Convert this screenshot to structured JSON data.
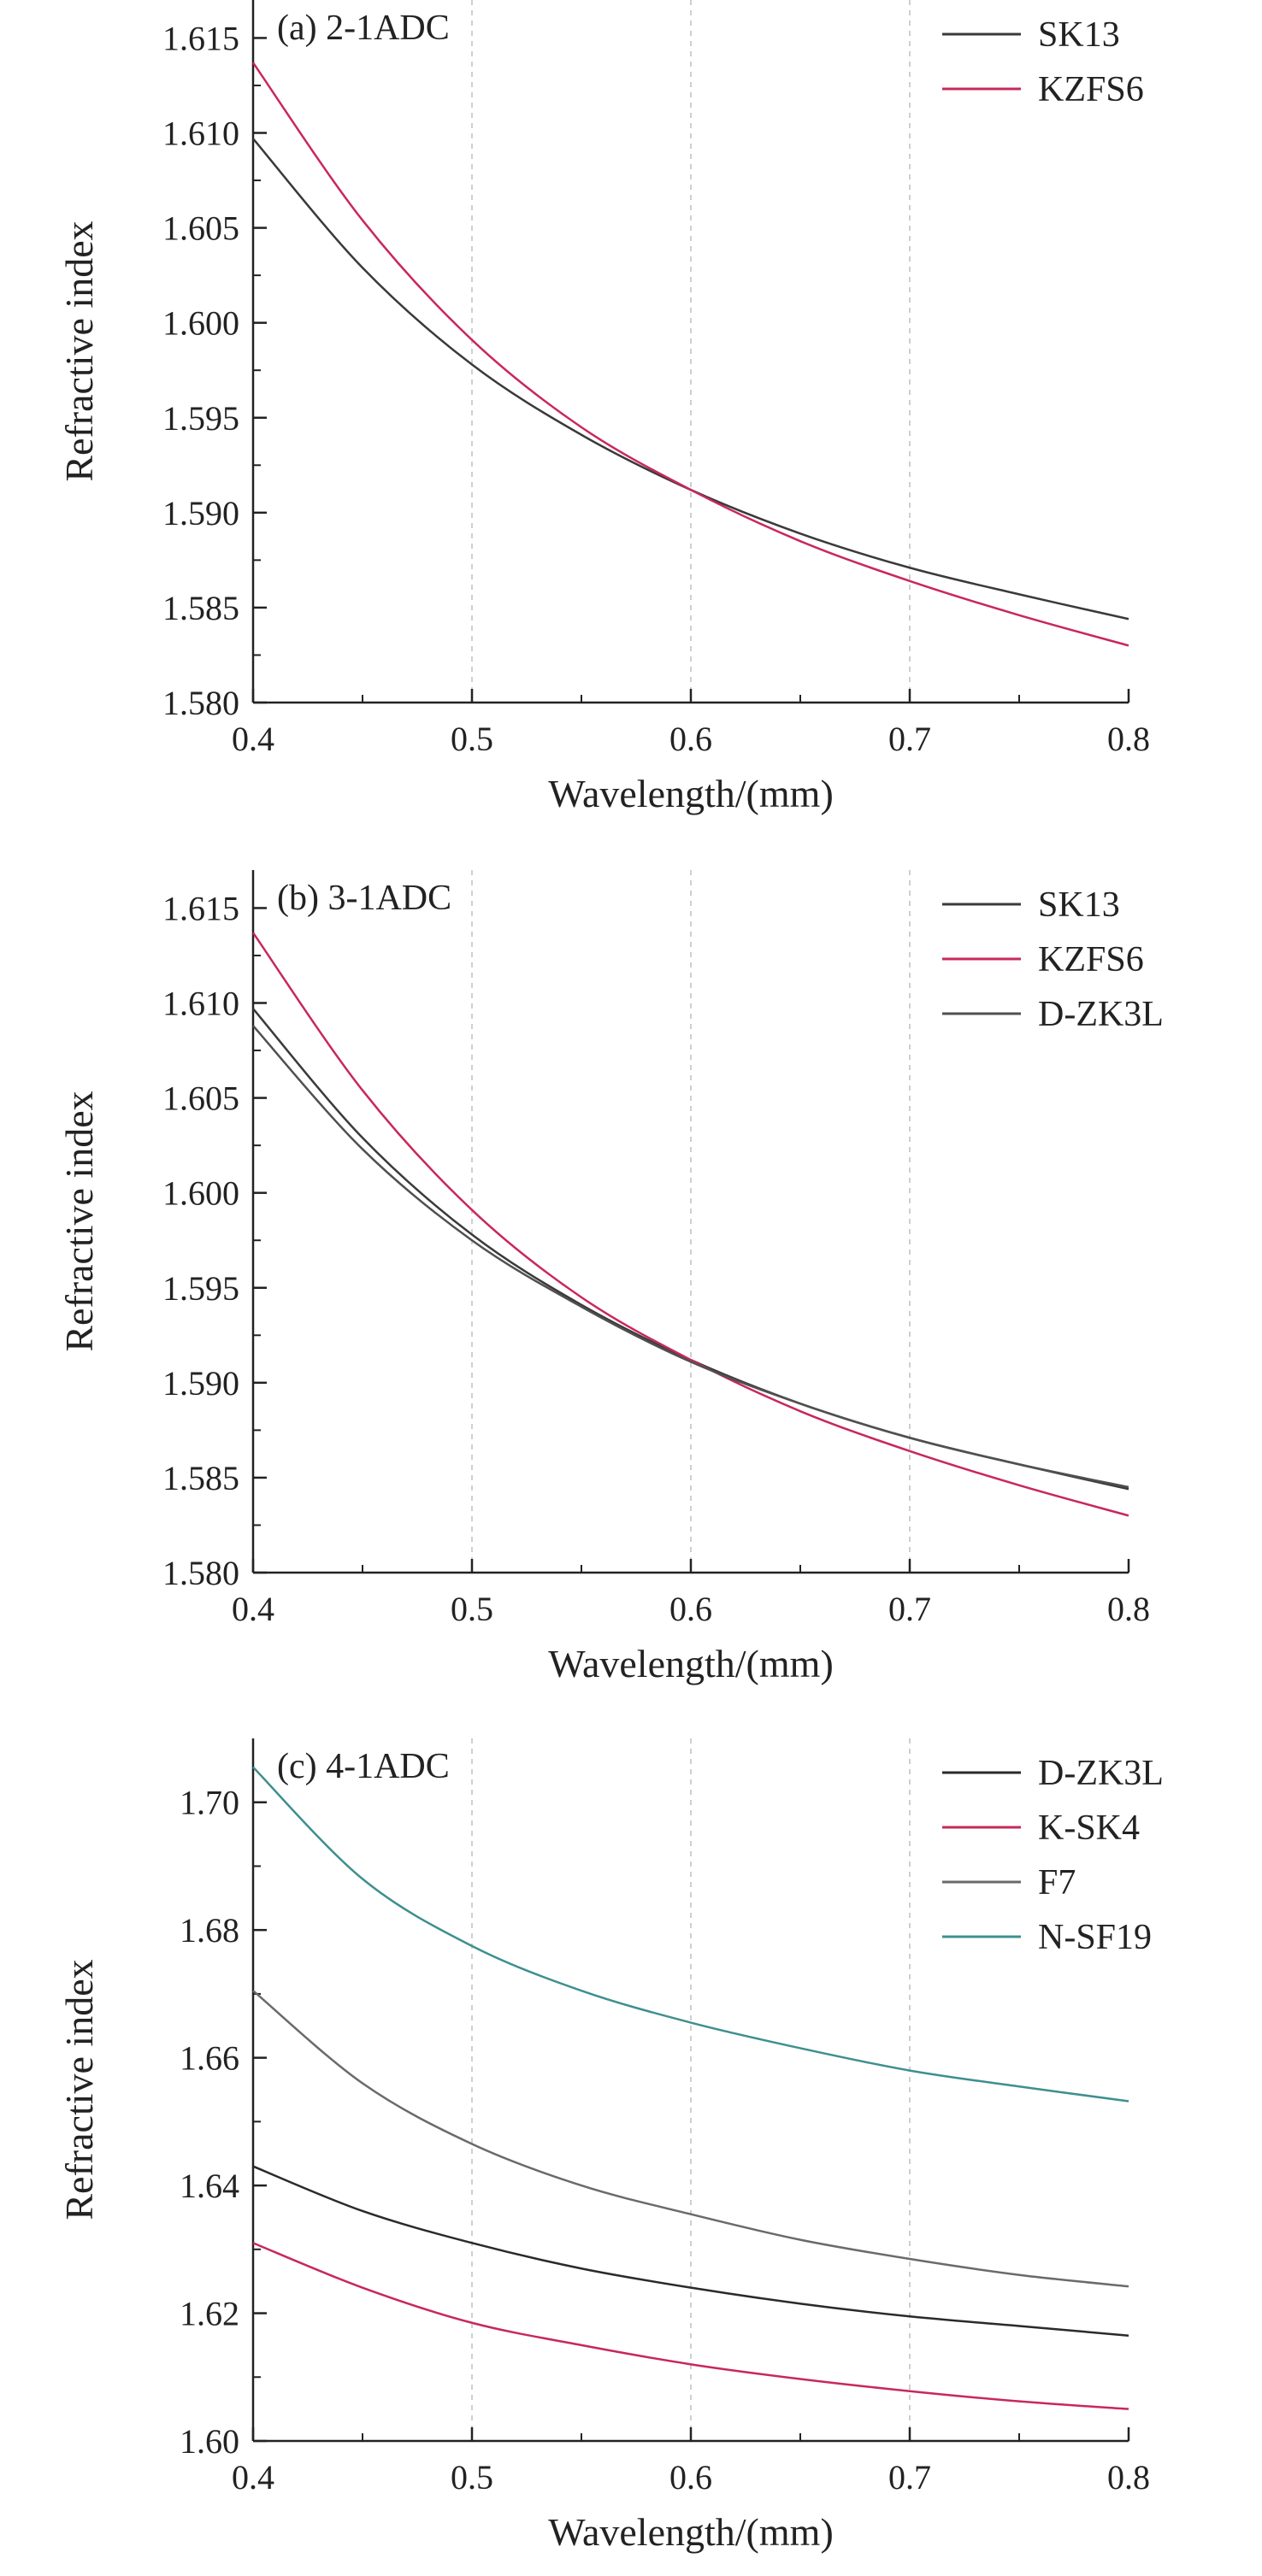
{
  "chart_data": [
    {
      "type": "line",
      "panel_label": "(a) 2-1ADC",
      "xlabel": "Wavelength/(mm)",
      "ylabel": "Refractive index",
      "xlim": [
        0.4,
        0.8
      ],
      "ylim": [
        1.58,
        1.617
      ],
      "xticks": [
        0.4,
        0.5,
        0.6,
        0.7,
        0.8
      ],
      "xtick_labels": [
        "0.4",
        "0.5",
        "0.6",
        "0.7",
        "0.8"
      ],
      "yticks": [
        1.58,
        1.585,
        1.59,
        1.595,
        1.6,
        1.605,
        1.61,
        1.615
      ],
      "ytick_labels": [
        "1.580",
        "1.585",
        "1.590",
        "1.595",
        "1.600",
        "1.605",
        "1.610",
        "1.615"
      ],
      "vertical_reference_lines": [
        0.5,
        0.6,
        0.7
      ],
      "legend_position": "top-right",
      "x": [
        0.4,
        0.45,
        0.5,
        0.55,
        0.6,
        0.65,
        0.7,
        0.75,
        0.8
      ],
      "series": [
        {
          "name": "SK13",
          "color": "#3a3a3a",
          "values": [
            1.6097,
            1.6029,
            1.5978,
            1.5941,
            1.5912,
            1.5889,
            1.5871,
            1.5857,
            1.5844
          ]
        },
        {
          "name": "KZFS6",
          "color": "#c8285a",
          "values": [
            1.6137,
            1.6054,
            1.5991,
            1.5945,
            1.5912,
            1.5885,
            1.5864,
            1.5846,
            1.583
          ]
        }
      ]
    },
    {
      "type": "line",
      "panel_label": "(b) 3-1ADC",
      "xlabel": "Wavelength/(mm)",
      "ylabel": "Refractive index",
      "xlim": [
        0.4,
        0.8
      ],
      "ylim": [
        1.58,
        1.617
      ],
      "xticks": [
        0.4,
        0.5,
        0.6,
        0.7,
        0.8
      ],
      "xtick_labels": [
        "0.4",
        "0.5",
        "0.6",
        "0.7",
        "0.8"
      ],
      "yticks": [
        1.58,
        1.585,
        1.59,
        1.595,
        1.6,
        1.605,
        1.61,
        1.615
      ],
      "ytick_labels": [
        "1.580",
        "1.585",
        "1.590",
        "1.595",
        "1.600",
        "1.605",
        "1.610",
        "1.615"
      ],
      "vertical_reference_lines": [
        0.5,
        0.6,
        0.7
      ],
      "legend_position": "top-right",
      "x": [
        0.4,
        0.45,
        0.5,
        0.55,
        0.6,
        0.65,
        0.7,
        0.75,
        0.8
      ],
      "series": [
        {
          "name": "SK13",
          "color": "#3a3a3a",
          "values": [
            1.6097,
            1.6029,
            1.5978,
            1.5941,
            1.5912,
            1.5889,
            1.5871,
            1.5857,
            1.5844
          ]
        },
        {
          "name": "KZFS6",
          "color": "#c8285a",
          "values": [
            1.6137,
            1.6054,
            1.5991,
            1.5945,
            1.5912,
            1.5885,
            1.5864,
            1.5846,
            1.583
          ]
        },
        {
          "name": "D-ZK3L",
          "color": "#505050",
          "values": [
            1.6088,
            1.6023,
            1.5975,
            1.594,
            1.5911,
            1.5889,
            1.5871,
            1.5857,
            1.5845
          ]
        }
      ]
    },
    {
      "type": "line",
      "panel_label": "(c) 4-1ADC",
      "xlabel": "Wavelength/(mm)",
      "ylabel": "Refractive index",
      "xlim": [
        0.4,
        0.8
      ],
      "ylim": [
        1.6,
        1.71
      ],
      "xticks": [
        0.4,
        0.5,
        0.6,
        0.7,
        0.8
      ],
      "xtick_labels": [
        "0.4",
        "0.5",
        "0.6",
        "0.7",
        "0.8"
      ],
      "yticks": [
        1.6,
        1.62,
        1.64,
        1.66,
        1.68,
        1.7
      ],
      "ytick_labels": [
        "1.60",
        "1.62",
        "1.64",
        "1.66",
        "1.68",
        "1.70"
      ],
      "vertical_reference_lines": [
        0.5,
        0.6,
        0.7
      ],
      "legend_position": "top-right",
      "x": [
        0.4,
        0.45,
        0.5,
        0.55,
        0.6,
        0.65,
        0.7,
        0.75,
        0.8
      ],
      "series": [
        {
          "name": "D-ZK3L",
          "color": "#2a2a2a",
          "values": [
            1.643,
            1.636,
            1.631,
            1.627,
            1.624,
            1.6215,
            1.6195,
            1.618,
            1.6165
          ]
        },
        {
          "name": "K-SK4",
          "color": "#c8285a",
          "values": [
            1.631,
            1.624,
            1.6185,
            1.615,
            1.612,
            1.6097,
            1.6078,
            1.6062,
            1.605
          ]
        },
        {
          "name": "F7",
          "color": "#6a6a6a",
          "values": [
            1.6705,
            1.656,
            1.6465,
            1.64,
            1.6355,
            1.6315,
            1.6285,
            1.626,
            1.6242
          ]
        },
        {
          "name": "N-SF19",
          "color": "#3f8f8f",
          "values": [
            1.7055,
            1.688,
            1.6775,
            1.6705,
            1.6655,
            1.6615,
            1.658,
            1.6555,
            1.6532
          ]
        }
      ]
    }
  ]
}
